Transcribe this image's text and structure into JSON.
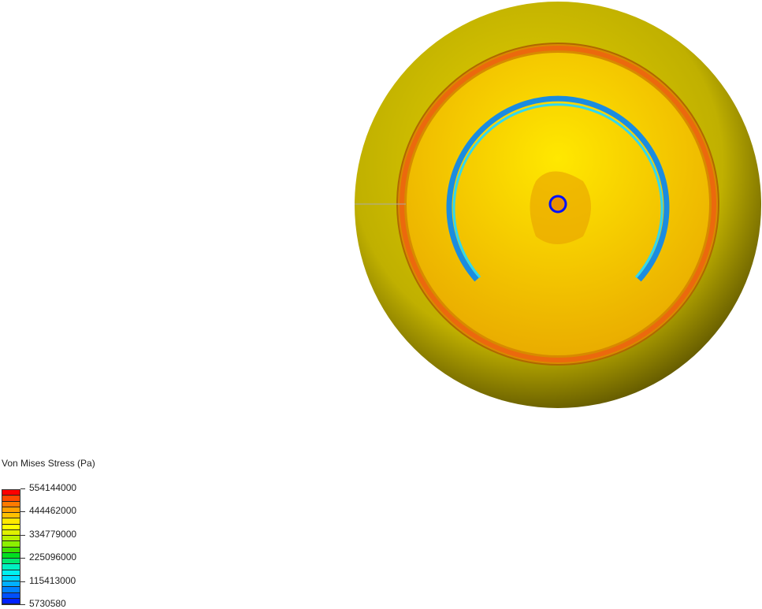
{
  "legend": {
    "title": "Von Mises Stress (Pa)",
    "ticks": [
      "554144000",
      "444462000",
      "334779000",
      "225096000",
      "115413000",
      "5730580"
    ],
    "colors": [
      "#ff0000",
      "#ff4a00",
      "#ff7a00",
      "#ffa000",
      "#ffc000",
      "#ffe800",
      "#ffff00",
      "#e0f000",
      "#b8f000",
      "#8cf000",
      "#40e000",
      "#00e020",
      "#00e870",
      "#00f0c0",
      "#00f0f0",
      "#00d8ff",
      "#00b0ff",
      "#0080ff",
      "#0050ff",
      "#0020ff"
    ]
  },
  "colors": {
    "sphere": "#c8b800",
    "disc": "#f0c000",
    "ring": "#f07000",
    "arc": "#20b0e0",
    "center_ring": "#0010ff"
  }
}
